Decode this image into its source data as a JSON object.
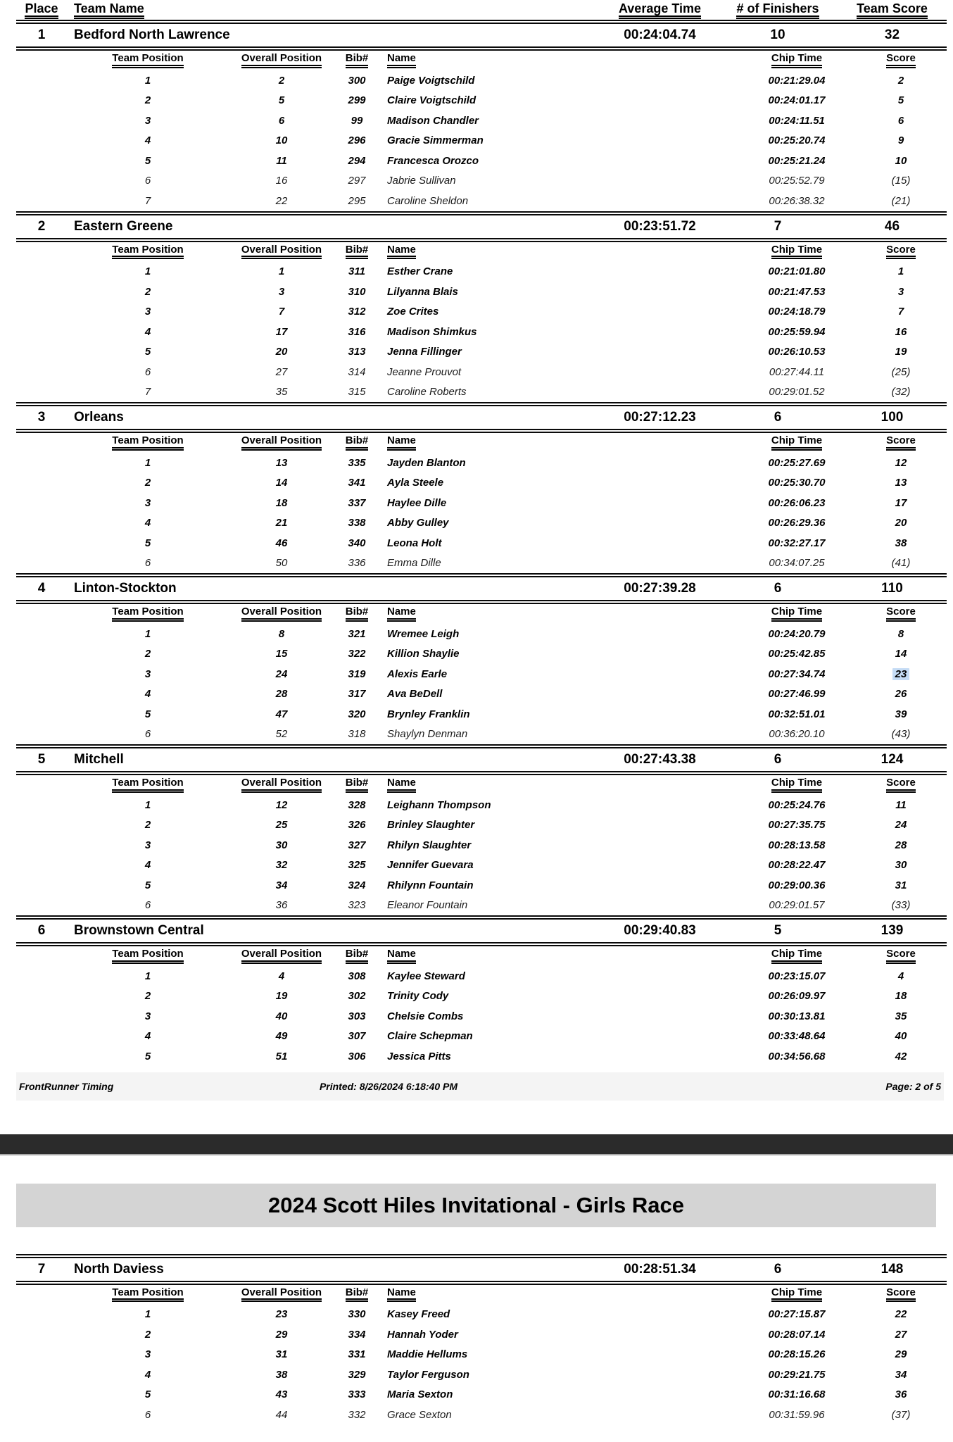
{
  "colors": {
    "highlight": "#c5dcf5",
    "title_band": "#d4d4d4",
    "footer_band": "#f4f4f4",
    "page_break_bar": "#2b2b2b"
  },
  "header": {
    "place": "Place",
    "team_name": "Team Name",
    "average_time": "Average Time",
    "finishers": "# of Finishers",
    "team_score": "Team Score"
  },
  "sub_header": {
    "team_position": "Team Position",
    "overall_position": "Overall Position",
    "bib": "Bib#",
    "name": "Name",
    "chip_time": "Chip Time",
    "score": "Score"
  },
  "footer": {
    "brand": "FrontRunner Timing",
    "printed": "Printed: 8/26/2024 6:18:40 PM",
    "page": "Page: 2 of 5"
  },
  "page2_title": "2024 Scott Hiles Invitational - Girls Race",
  "teams": [
    {
      "page": 1,
      "place": "1",
      "name": "Bedford North Lawrence",
      "average_time": "00:24:04.74",
      "finishers": "10",
      "team_score": "32",
      "runners": [
        {
          "team_position": "1",
          "overall_position": "2",
          "bib": "300",
          "name": "Paige Voigtschild",
          "chip_time": "00:21:29.04",
          "score": "2",
          "scoring": true
        },
        {
          "team_position": "2",
          "overall_position": "5",
          "bib": "299",
          "name": "Claire Voigtschild",
          "chip_time": "00:24:01.17",
          "score": "5",
          "scoring": true
        },
        {
          "team_position": "3",
          "overall_position": "6",
          "bib": "99",
          "name": "Madison Chandler",
          "chip_time": "00:24:11.51",
          "score": "6",
          "scoring": true
        },
        {
          "team_position": "4",
          "overall_position": "10",
          "bib": "296",
          "name": "Gracie Simmerman",
          "chip_time": "00:25:20.74",
          "score": "9",
          "scoring": true
        },
        {
          "team_position": "5",
          "overall_position": "11",
          "bib": "294",
          "name": "Francesca Orozco",
          "chip_time": "00:25:21.24",
          "score": "10",
          "scoring": true
        },
        {
          "team_position": "6",
          "overall_position": "16",
          "bib": "297",
          "name": "Jabrie Sullivan",
          "chip_time": "00:25:52.79",
          "score": "(15)",
          "scoring": false
        },
        {
          "team_position": "7",
          "overall_position": "22",
          "bib": "295",
          "name": "Caroline Sheldon",
          "chip_time": "00:26:38.32",
          "score": "(21)",
          "scoring": false
        }
      ]
    },
    {
      "page": 1,
      "place": "2",
      "name": "Eastern Greene",
      "average_time": "00:23:51.72",
      "finishers": "7",
      "team_score": "46",
      "runners": [
        {
          "team_position": "1",
          "overall_position": "1",
          "bib": "311",
          "name": "Esther Crane",
          "chip_time": "00:21:01.80",
          "score": "1",
          "scoring": true
        },
        {
          "team_position": "2",
          "overall_position": "3",
          "bib": "310",
          "name": "Lilyanna Blais",
          "chip_time": "00:21:47.53",
          "score": "3",
          "scoring": true
        },
        {
          "team_position": "3",
          "overall_position": "7",
          "bib": "312",
          "name": "Zoe Crites",
          "chip_time": "00:24:18.79",
          "score": "7",
          "scoring": true
        },
        {
          "team_position": "4",
          "overall_position": "17",
          "bib": "316",
          "name": "Madison Shimkus",
          "chip_time": "00:25:59.94",
          "score": "16",
          "scoring": true
        },
        {
          "team_position": "5",
          "overall_position": "20",
          "bib": "313",
          "name": "Jenna Fillinger",
          "chip_time": "00:26:10.53",
          "score": "19",
          "scoring": true
        },
        {
          "team_position": "6",
          "overall_position": "27",
          "bib": "314",
          "name": "Jeanne Prouvot",
          "chip_time": "00:27:44.11",
          "score": "(25)",
          "scoring": false
        },
        {
          "team_position": "7",
          "overall_position": "35",
          "bib": "315",
          "name": "Caroline Roberts",
          "chip_time": "00:29:01.52",
          "score": "(32)",
          "scoring": false
        }
      ]
    },
    {
      "page": 1,
      "place": "3",
      "name": "Orleans",
      "average_time": "00:27:12.23",
      "finishers": "6",
      "team_score": "100",
      "runners": [
        {
          "team_position": "1",
          "overall_position": "13",
          "bib": "335",
          "name": "Jayden Blanton",
          "chip_time": "00:25:27.69",
          "score": "12",
          "scoring": true
        },
        {
          "team_position": "2",
          "overall_position": "14",
          "bib": "341",
          "name": "Ayla Steele",
          "chip_time": "00:25:30.70",
          "score": "13",
          "scoring": true
        },
        {
          "team_position": "3",
          "overall_position": "18",
          "bib": "337",
          "name": "Haylee Dille",
          "chip_time": "00:26:06.23",
          "score": "17",
          "scoring": true
        },
        {
          "team_position": "4",
          "overall_position": "21",
          "bib": "338",
          "name": "Abby Gulley",
          "chip_time": "00:26:29.36",
          "score": "20",
          "scoring": true
        },
        {
          "team_position": "5",
          "overall_position": "46",
          "bib": "340",
          "name": "Leona Holt",
          "chip_time": "00:32:27.17",
          "score": "38",
          "scoring": true
        },
        {
          "team_position": "6",
          "overall_position": "50",
          "bib": "336",
          "name": "Emma Dille",
          "chip_time": "00:34:07.25",
          "score": "(41)",
          "scoring": false
        }
      ]
    },
    {
      "page": 1,
      "place": "4",
      "name": "Linton-Stockton",
      "average_time": "00:27:39.28",
      "finishers": "6",
      "team_score": "110",
      "runners": [
        {
          "team_position": "1",
          "overall_position": "8",
          "bib": "321",
          "name": "Wremee Leigh",
          "chip_time": "00:24:20.79",
          "score": "8",
          "scoring": true
        },
        {
          "team_position": "2",
          "overall_position": "15",
          "bib": "322",
          "name": "Killion Shaylie",
          "chip_time": "00:25:42.85",
          "score": "14",
          "scoring": true
        },
        {
          "team_position": "3",
          "overall_position": "24",
          "bib": "319",
          "name": "Alexis Earle",
          "chip_time": "00:27:34.74",
          "score": "23",
          "scoring": true,
          "highlighted": true
        },
        {
          "team_position": "4",
          "overall_position": "28",
          "bib": "317",
          "name": "Ava BeDell",
          "chip_time": "00:27:46.99",
          "score": "26",
          "scoring": true
        },
        {
          "team_position": "5",
          "overall_position": "47",
          "bib": "320",
          "name": "Brynley Franklin",
          "chip_time": "00:32:51.01",
          "score": "39",
          "scoring": true
        },
        {
          "team_position": "6",
          "overall_position": "52",
          "bib": "318",
          "name": "Shaylyn Denman",
          "chip_time": "00:36:20.10",
          "score": "(43)",
          "scoring": false
        }
      ]
    },
    {
      "page": 1,
      "place": "5",
      "name": "Mitchell",
      "average_time": "00:27:43.38",
      "finishers": "6",
      "team_score": "124",
      "runners": [
        {
          "team_position": "1",
          "overall_position": "12",
          "bib": "328",
          "name": "Leighann Thompson",
          "chip_time": "00:25:24.76",
          "score": "11",
          "scoring": true
        },
        {
          "team_position": "2",
          "overall_position": "25",
          "bib": "326",
          "name": "Brinley Slaughter",
          "chip_time": "00:27:35.75",
          "score": "24",
          "scoring": true
        },
        {
          "team_position": "3",
          "overall_position": "30",
          "bib": "327",
          "name": "Rhilyn Slaughter",
          "chip_time": "00:28:13.58",
          "score": "28",
          "scoring": true
        },
        {
          "team_position": "4",
          "overall_position": "32",
          "bib": "325",
          "name": "Jennifer Guevara",
          "chip_time": "00:28:22.47",
          "score": "30",
          "scoring": true
        },
        {
          "team_position": "5",
          "overall_position": "34",
          "bib": "324",
          "name": "Rhilynn Fountain",
          "chip_time": "00:29:00.36",
          "score": "31",
          "scoring": true
        },
        {
          "team_position": "6",
          "overall_position": "36",
          "bib": "323",
          "name": "Eleanor Fountain",
          "chip_time": "00:29:01.57",
          "score": "(33)",
          "scoring": false
        }
      ]
    },
    {
      "page": 1,
      "place": "6",
      "name": "Brownstown Central",
      "average_time": "00:29:40.83",
      "finishers": "5",
      "team_score": "139",
      "runners": [
        {
          "team_position": "1",
          "overall_position": "4",
          "bib": "308",
          "name": "Kaylee Steward",
          "chip_time": "00:23:15.07",
          "score": "4",
          "scoring": true
        },
        {
          "team_position": "2",
          "overall_position": "19",
          "bib": "302",
          "name": "Trinity Cody",
          "chip_time": "00:26:09.97",
          "score": "18",
          "scoring": true
        },
        {
          "team_position": "3",
          "overall_position": "40",
          "bib": "303",
          "name": "Chelsie Combs",
          "chip_time": "00:30:13.81",
          "score": "35",
          "scoring": true
        },
        {
          "team_position": "4",
          "overall_position": "49",
          "bib": "307",
          "name": "Claire Schepman",
          "chip_time": "00:33:48.64",
          "score": "40",
          "scoring": true
        },
        {
          "team_position": "5",
          "overall_position": "51",
          "bib": "306",
          "name": "Jessica Pitts",
          "chip_time": "00:34:56.68",
          "score": "42",
          "scoring": true
        }
      ]
    },
    {
      "page": 2,
      "place": "7",
      "name": "North Daviess",
      "average_time": "00:28:51.34",
      "finishers": "6",
      "team_score": "148",
      "runners": [
        {
          "team_position": "1",
          "overall_position": "23",
          "bib": "330",
          "name": "Kasey Freed",
          "chip_time": "00:27:15.87",
          "score": "22",
          "scoring": true
        },
        {
          "team_position": "2",
          "overall_position": "29",
          "bib": "334",
          "name": "Hannah Yoder",
          "chip_time": "00:28:07.14",
          "score": "27",
          "scoring": true
        },
        {
          "team_position": "3",
          "overall_position": "31",
          "bib": "331",
          "name": "Maddie Hellums",
          "chip_time": "00:28:15.26",
          "score": "29",
          "scoring": true
        },
        {
          "team_position": "4",
          "overall_position": "38",
          "bib": "329",
          "name": "Taylor Ferguson",
          "chip_time": "00:29:21.75",
          "score": "34",
          "scoring": true
        },
        {
          "team_position": "5",
          "overall_position": "43",
          "bib": "333",
          "name": "Maria Sexton",
          "chip_time": "00:31:16.68",
          "score": "36",
          "scoring": true
        },
        {
          "team_position": "6",
          "overall_position": "44",
          "bib": "332",
          "name": "Grace Sexton",
          "chip_time": "00:31:59.96",
          "score": "(37)",
          "scoring": false
        }
      ]
    }
  ]
}
